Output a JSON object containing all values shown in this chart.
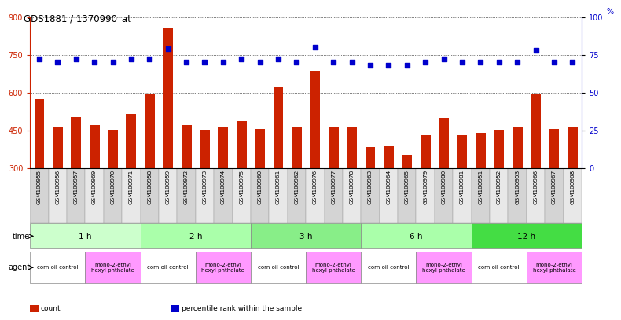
{
  "title": "GDS1881 / 1370990_at",
  "samples": [
    "GSM100955",
    "GSM100956",
    "GSM100957",
    "GSM100969",
    "GSM100970",
    "GSM100971",
    "GSM100958",
    "GSM100959",
    "GSM100972",
    "GSM100973",
    "GSM100974",
    "GSM100975",
    "GSM100960",
    "GSM100961",
    "GSM100962",
    "GSM100976",
    "GSM100977",
    "GSM100978",
    "GSM100963",
    "GSM100964",
    "GSM100965",
    "GSM100979",
    "GSM100980",
    "GSM100981",
    "GSM100951",
    "GSM100952",
    "GSM100953",
    "GSM100966",
    "GSM100967",
    "GSM100968"
  ],
  "counts": [
    575,
    463,
    503,
    470,
    452,
    513,
    593,
    857,
    470,
    453,
    465,
    487,
    455,
    620,
    465,
    685,
    463,
    462,
    383,
    387,
    352,
    430,
    500,
    430,
    440,
    453,
    462,
    593,
    455,
    465
  ],
  "percentiles": [
    72,
    70,
    72,
    70,
    70,
    72,
    72,
    79,
    70,
    70,
    70,
    72,
    70,
    72,
    70,
    80,
    70,
    70,
    68,
    68,
    68,
    70,
    72,
    70,
    70,
    70,
    70,
    78,
    70,
    70
  ],
  "ymin": 300,
  "ymax": 900,
  "yticks_left": [
    300,
    450,
    600,
    750,
    900
  ],
  "ylim_right": [
    0,
    100
  ],
  "yticks_right": [
    0,
    25,
    50,
    75,
    100
  ],
  "time_groups": [
    {
      "label": "1 h",
      "start": 0,
      "end": 6,
      "color": "#ccffcc"
    },
    {
      "label": "2 h",
      "start": 6,
      "end": 12,
      "color": "#aaffaa"
    },
    {
      "label": "3 h",
      "start": 12,
      "end": 18,
      "color": "#88ee88"
    },
    {
      "label": "6 h",
      "start": 18,
      "end": 24,
      "color": "#aaffaa"
    },
    {
      "label": "12 h",
      "start": 24,
      "end": 30,
      "color": "#44dd44"
    }
  ],
  "agent_groups": [
    {
      "label": "corn oil control",
      "start": 0,
      "end": 3,
      "color": "#ffffff"
    },
    {
      "label": "mono-2-ethyl\nhexyl phthalate",
      "start": 3,
      "end": 6,
      "color": "#ff99ff"
    },
    {
      "label": "corn oil control",
      "start": 6,
      "end": 9,
      "color": "#ffffff"
    },
    {
      "label": "mono-2-ethyl\nhexyl phthalate",
      "start": 9,
      "end": 12,
      "color": "#ff99ff"
    },
    {
      "label": "corn oil control",
      "start": 12,
      "end": 15,
      "color": "#ffffff"
    },
    {
      "label": "mono-2-ethyl\nhexyl phthalate",
      "start": 15,
      "end": 18,
      "color": "#ff99ff"
    },
    {
      "label": "corn oil control",
      "start": 18,
      "end": 21,
      "color": "#ffffff"
    },
    {
      "label": "mono-2-ethyl\nhexyl phthalate",
      "start": 21,
      "end": 24,
      "color": "#ff99ff"
    },
    {
      "label": "corn oil control",
      "start": 24,
      "end": 27,
      "color": "#ffffff"
    },
    {
      "label": "mono-2-ethyl\nhexyl phthalate",
      "start": 27,
      "end": 30,
      "color": "#ff99ff"
    }
  ],
  "bar_color": "#cc2200",
  "dot_color": "#0000cc",
  "bg_color": "#ffffff",
  "axis_color_left": "#cc2200",
  "axis_color_right": "#0000cc",
  "legend_items": [
    {
      "color": "#cc2200",
      "label": "count"
    },
    {
      "color": "#0000cc",
      "label": "percentile rank within the sample"
    }
  ]
}
